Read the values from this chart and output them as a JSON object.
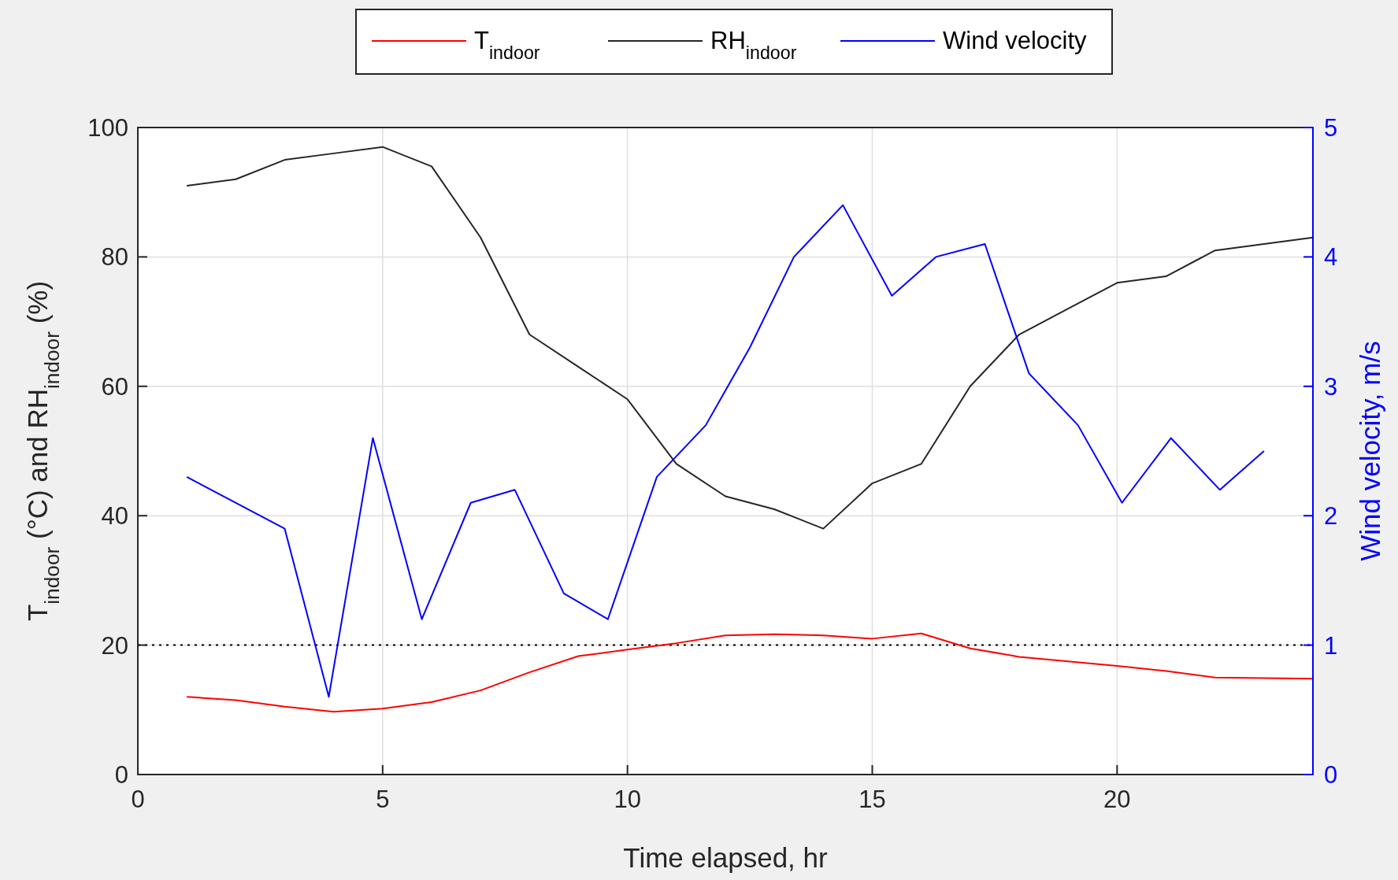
{
  "chart_data": {
    "type": "line",
    "xlabel": "Time elapsed, hr",
    "ylabel": "T$_{indoor}$ (°C) and RH$_{indoor}$ (%)",
    "y2label": "Wind velocity, m/s",
    "xlim": [
      0,
      24
    ],
    "xticks": [
      0,
      5,
      10,
      15,
      20
    ],
    "ylim": [
      0,
      100
    ],
    "yticks": [
      0,
      20,
      40,
      60,
      80,
      100
    ],
    "y2lim": [
      0,
      5
    ],
    "y2ticks": [
      0,
      1,
      2,
      3,
      4,
      5
    ],
    "grid": true,
    "legend": "top",
    "line_style": "solid",
    "ref_lines": [
      {
        "axis": "y",
        "value": 20,
        "color": "#000000",
        "line_style": "dotted"
      }
    ],
    "series": [
      {
        "name": "T$_{indoor}$",
        "color": "#ff0000",
        "x": [
          1,
          2,
          3,
          4,
          5,
          6,
          7,
          8,
          9,
          10,
          11,
          12,
          13,
          14,
          15,
          16,
          17,
          18,
          19,
          20,
          21,
          22,
          23,
          24
        ],
        "values": [
          12,
          11.5,
          10.5,
          9.7,
          10.2,
          11.2,
          13,
          15.8,
          18.3,
          19.3,
          20.3,
          21.5,
          21.7,
          21.5,
          21,
          21.8,
          19.5,
          18.2,
          17.5,
          16.8,
          16,
          15,
          14.9,
          14.8
        ]
      },
      {
        "name": "RH$_{indoor}$",
        "color": "#262626",
        "x": [
          1,
          2,
          3,
          4,
          5,
          6,
          7,
          8,
          9,
          10,
          11,
          12,
          13,
          14,
          15,
          16,
          17,
          18,
          19,
          20,
          21,
          22,
          23,
          24
        ],
        "values": [
          91,
          92,
          95,
          96,
          97,
          94,
          83,
          68,
          63,
          58,
          48,
          43,
          41,
          38,
          45,
          48,
          60,
          68,
          72,
          76,
          77,
          81,
          82,
          83
        ]
      },
      {
        "name": "Wind velocity",
        "color": "#0000ff",
        "axis": "y2",
        "x": [
          1,
          3,
          3.9,
          4.8,
          5.8,
          6.8,
          7.7,
          8.7,
          9.6,
          10.6,
          11.6,
          12.5,
          13.4,
          14.4,
          15.4,
          16.3,
          17.3,
          18.2,
          19.2,
          20.1,
          21.1,
          22.1,
          23
        ],
        "values": [
          2.3,
          1.9,
          0.6,
          2.6,
          1.2,
          2.1,
          2.2,
          1.4,
          1.2,
          2.3,
          2.7,
          3.3,
          4,
          4.4,
          3.7,
          4,
          4.1,
          3.1,
          2.7,
          2.1,
          2.6,
          2.2,
          2.5
        ]
      }
    ]
  }
}
